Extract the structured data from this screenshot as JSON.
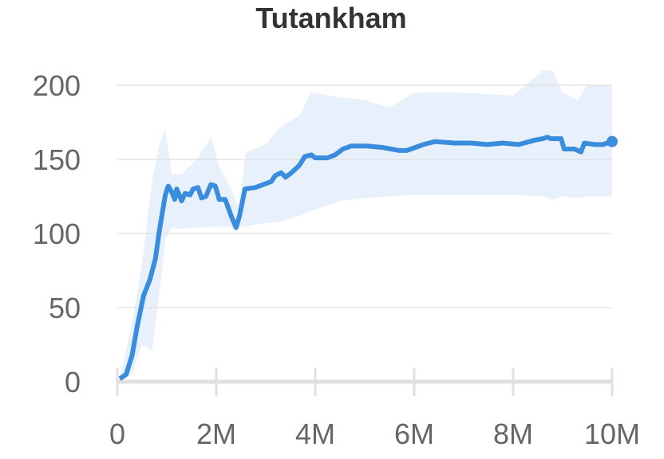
{
  "chart_data": {
    "type": "line",
    "title": "Tutankham",
    "xlim": [
      0,
      10000000
    ],
    "ylim": [
      0,
      200
    ],
    "xticks": [
      0,
      {
        "value": 2000000,
        "label": "2M"
      },
      {
        "value": 4000000,
        "label": "4M"
      },
      {
        "value": 6000000,
        "label": "6M"
      },
      {
        "value": 8000000,
        "label": "8M"
      },
      {
        "value": 10000000,
        "label": "10M"
      }
    ],
    "yticks": [
      0,
      50,
      100,
      150,
      200
    ],
    "grid": true,
    "x": [
      50000,
      180000,
      300000,
      400000,
      530000,
      660000,
      770000,
      850000,
      970000,
      1030000,
      1100000,
      1160000,
      1200000,
      1300000,
      1370000,
      1470000,
      1530000,
      1630000,
      1700000,
      1790000,
      1890000,
      1980000,
      2060000,
      2180000,
      2300000,
      2400000,
      2470000,
      2580000,
      2790000,
      2950000,
      3110000,
      3190000,
      3310000,
      3400000,
      3520000,
      3680000,
      3790000,
      3920000,
      4000000,
      4240000,
      4400000,
      4560000,
      4730000,
      5050000,
      5370000,
      5690000,
      5850000,
      6020000,
      6180000,
      6420000,
      6820000,
      7150000,
      7470000,
      7790000,
      8110000,
      8440000,
      8600000,
      8690000,
      8760000,
      8870000,
      8970000,
      9030000,
      9240000,
      9370000,
      9440000,
      9650000,
      9810000,
      10000000
    ],
    "series": [
      {
        "color": "#3a8ddd",
        "values": [
          2,
          5,
          18,
          37,
          58,
          69,
          83,
          102,
          126,
          132,
          128,
          123,
          130,
          122,
          127,
          126,
          130,
          131,
          124,
          125,
          133,
          132,
          123,
          123,
          112,
          104,
          112,
          130,
          131,
          133,
          135,
          139,
          141,
          138,
          141,
          146,
          152,
          153,
          151,
          151,
          153,
          157,
          159,
          159,
          158,
          156,
          156,
          158,
          160,
          162,
          161,
          161,
          160,
          161,
          160,
          163,
          164,
          165,
          164,
          164,
          164,
          157,
          157,
          155,
          161,
          160,
          160,
          162
        ]
      }
    ],
    "band": {
      "color": "#e8f1fb",
      "x": [
        50000,
        300000,
        500000,
        700000,
        850000,
        970000,
        1100000,
        1300000,
        1600000,
        1900000,
        2060000,
        2300000,
        2450000,
        2600000,
        3000000,
        3300000,
        3700000,
        3900000,
        4500000,
        5000000,
        5500000,
        6000000,
        7000000,
        8000000,
        8600000,
        8800000,
        9000000,
        9300000,
        9500000,
        10000000
      ],
      "upper": [
        2,
        40,
        80,
        135,
        160,
        170,
        140,
        140,
        150,
        165,
        145,
        130,
        118,
        155,
        160,
        172,
        180,
        195,
        192,
        190,
        185,
        195,
        195,
        193,
        210,
        210,
        195,
        190,
        200,
        200
      ],
      "lower": [
        0,
        5,
        25,
        21,
        60,
        95,
        104,
        103,
        104,
        104,
        105,
        104,
        104,
        105,
        107,
        108,
        112,
        115,
        122,
        124,
        125,
        126,
        126,
        126,
        125,
        123,
        125,
        124,
        125,
        125
      ]
    }
  }
}
